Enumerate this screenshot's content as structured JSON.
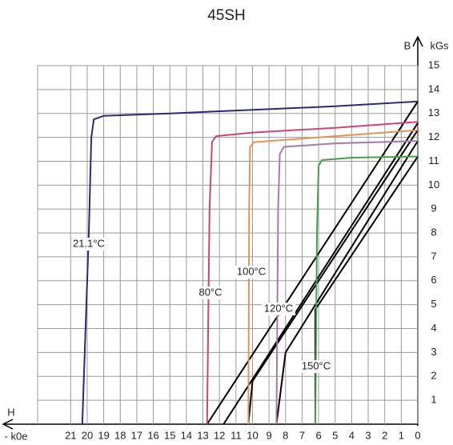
{
  "chart_data": {
    "type": "line",
    "title": "45SH",
    "y_label": "B",
    "y_unit": "kGs",
    "x_label": "H",
    "x_unit": "- k0e",
    "xlim": [
      23,
      0
    ],
    "ylim": [
      0,
      15
    ],
    "xticks": [
      0,
      1,
      2,
      3,
      4,
      5,
      6,
      7,
      8,
      9,
      10,
      11,
      12,
      13,
      14,
      15,
      16,
      17,
      18,
      19,
      20,
      21
    ],
    "yticks": [
      1,
      2,
      3,
      4,
      5,
      6,
      7,
      8,
      9,
      10,
      11,
      12,
      13,
      14,
      15
    ],
    "grid": true,
    "series": [
      {
        "name": "21.1°C",
        "color": "#2b2b6e",
        "x": [
          0,
          5,
          10,
          15,
          19,
          19.6,
          19.75,
          19.9,
          20.3
        ],
        "values": [
          13.5,
          13.3,
          13.15,
          13.0,
          12.9,
          12.75,
          12,
          8,
          0
        ]
      },
      {
        "name": "80°C",
        "color": "#c9467a",
        "x": [
          0,
          5,
          10,
          12.2,
          12.45,
          12.6,
          12.75
        ],
        "values": [
          12.65,
          12.4,
          12.2,
          12.05,
          11.8,
          9,
          0
        ]
      },
      {
        "name": "100°C",
        "color": "#e0955a",
        "x": [
          0,
          5,
          9.9,
          10.15,
          10.2,
          10.25
        ],
        "values": [
          12.3,
          12.05,
          11.8,
          11.6,
          9,
          0
        ]
      },
      {
        "name": "120°C",
        "color": "#a57aa8",
        "x": [
          0,
          5,
          8.1,
          8.35,
          8.45,
          8.55
        ],
        "values": [
          11.85,
          11.75,
          11.6,
          11.3,
          9,
          0
        ]
      },
      {
        "name": "150°C",
        "color": "#4f9a4f",
        "x": [
          0,
          4,
          5.8,
          6.0,
          6.1,
          6.2
        ],
        "values": [
          11.2,
          11.15,
          11.05,
          10.8,
          8,
          0
        ]
      }
    ],
    "normal_series": [
      {
        "color": "#000000",
        "x": [
          0,
          12.75
        ],
        "values": [
          13.5,
          0
        ]
      },
      {
        "color": "#000000",
        "x": [
          0,
          11.75
        ],
        "values": [
          12.6,
          0
        ]
      },
      {
        "color": "#000000",
        "x": [
          0,
          10.0,
          10.25
        ],
        "values": [
          12.3,
          1.8,
          0
        ]
      },
      {
        "color": "#000000",
        "x": [
          0,
          8.0,
          8.55
        ],
        "values": [
          11.85,
          3.0,
          0
        ]
      },
      {
        "color": "#000000",
        "x": [
          0,
          6.2,
          6.2
        ],
        "values": [
          11.2,
          4.8,
          0
        ]
      }
    ]
  }
}
